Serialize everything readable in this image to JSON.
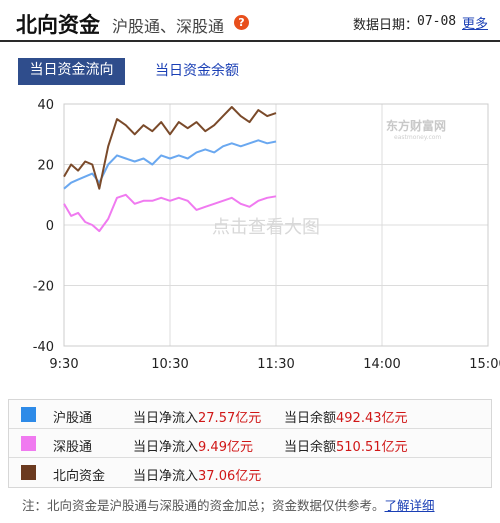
{
  "header": {
    "title": "北向资金",
    "subtitle": "沪股通、深股通",
    "help_icon": "question-icon",
    "date_label": "数据日期：",
    "date_value": "07-08",
    "more_label": "更多"
  },
  "tabs": [
    {
      "label": "当日资金流向",
      "active": true
    },
    {
      "label": "当日资金余额",
      "active": false
    }
  ],
  "watermark": {
    "text": "点击查看大图",
    "logo_name": "东方财富网",
    "logo_sub": "eastmoney.com"
  },
  "chart_data": {
    "type": "line",
    "x_ticks": [
      "9:30",
      "10:30",
      "11:30",
      "14:00",
      "15:00"
    ],
    "y_ticks": [
      "40",
      "20",
      "0",
      "-20",
      "-40"
    ],
    "ylim": [
      -40,
      40
    ],
    "grid": true,
    "series": [
      {
        "name": "沪股通",
        "color": "#6aa8f0",
        "x": [
          "9:30",
          "9:34",
          "9:38",
          "9:42",
          "9:46",
          "9:50",
          "9:55",
          "10:00",
          "10:05",
          "10:10",
          "10:15",
          "10:20",
          "10:25",
          "10:30",
          "10:35",
          "10:40",
          "10:45",
          "10:50",
          "10:55",
          "11:00",
          "11:05",
          "11:10",
          "11:15",
          "11:20",
          "11:25",
          "11:30"
        ],
        "values": [
          12,
          14,
          15,
          16,
          17,
          14,
          20,
          23,
          22,
          21,
          22,
          20,
          23,
          22,
          23,
          22,
          24,
          25,
          24,
          26,
          27,
          26,
          27,
          28,
          27,
          27.6
        ]
      },
      {
        "name": "深股通",
        "color": "#f07af0",
        "x": [
          "9:30",
          "9:34",
          "9:38",
          "9:42",
          "9:46",
          "9:50",
          "9:55",
          "10:00",
          "10:05",
          "10:10",
          "10:15",
          "10:20",
          "10:25",
          "10:30",
          "10:35",
          "10:40",
          "10:45",
          "10:50",
          "10:55",
          "11:00",
          "11:05",
          "11:10",
          "11:15",
          "11:20",
          "11:25",
          "11:30"
        ],
        "values": [
          7,
          3,
          4,
          1,
          0,
          -2,
          2,
          9,
          10,
          7,
          8,
          8,
          9,
          8,
          9,
          8,
          5,
          6,
          7,
          8,
          9,
          7,
          6,
          8,
          9,
          9.5
        ]
      },
      {
        "name": "北向资金",
        "color": "#7a4a2a",
        "x": [
          "9:30",
          "9:34",
          "9:38",
          "9:42",
          "9:46",
          "9:50",
          "9:55",
          "10:00",
          "10:05",
          "10:10",
          "10:15",
          "10:20",
          "10:25",
          "10:30",
          "10:35",
          "10:40",
          "10:45",
          "10:50",
          "10:55",
          "11:00",
          "11:05",
          "11:10",
          "11:15",
          "11:20",
          "11:25",
          "11:30"
        ],
        "values": [
          16,
          20,
          18,
          21,
          20,
          12,
          26,
          35,
          33,
          30,
          33,
          31,
          34,
          30,
          34,
          32,
          34,
          31,
          33,
          36,
          39,
          36,
          34,
          38,
          36,
          37
        ]
      }
    ]
  },
  "legend": [
    {
      "name": "沪股通",
      "color": "#2e8be8",
      "inflow_label": "当日净流入",
      "inflow_value": "27.57亿元",
      "balance_label": "当日余额",
      "balance_value": "492.43亿元"
    },
    {
      "name": "深股通",
      "color": "#f07af0",
      "inflow_label": "当日净流入",
      "inflow_value": "9.49亿元",
      "balance_label": "当日余额",
      "balance_value": "510.51亿元"
    },
    {
      "name": "北向资金",
      "color": "#6b3a1f",
      "inflow_label": "当日净流入",
      "inflow_value": "37.06亿元"
    }
  ],
  "footer": {
    "note": "注：北向资金是沪股通与深股通的资金加总；资金数据仅供参考。",
    "link_label": "了解详细"
  }
}
